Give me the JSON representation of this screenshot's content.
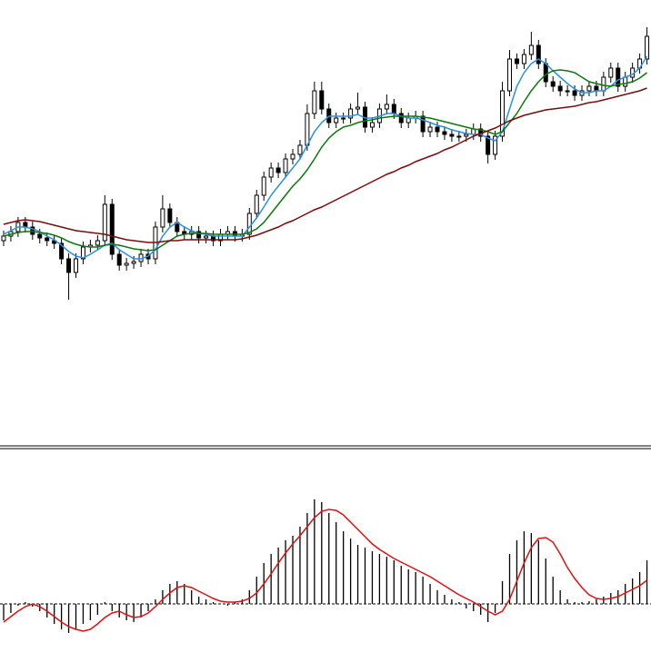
{
  "chart_data": [
    {
      "type": "candlestick",
      "ylim": [
        0,
        490
      ],
      "up_color": "#ffffff",
      "down_color": "#000000",
      "wick_color": "#000000",
      "open": [
        225,
        230,
        235,
        245,
        240,
        232,
        228,
        225,
        222,
        205,
        190,
        205,
        218,
        220,
        225,
        265,
        210,
        198,
        200,
        202,
        210,
        205,
        240,
        260,
        245,
        235,
        232,
        235,
        228,
        230,
        225,
        232,
        235,
        230,
        232,
        255,
        275,
        295,
        305,
        300,
        315,
        320,
        330,
        365,
        390,
        370,
        355,
        360,
        360,
        370,
        372,
        350,
        355,
        370,
        375,
        365,
        355,
        360,
        362,
        345,
        350,
        345,
        342,
        340,
        340,
        342,
        348,
        340,
        320,
        340,
        390,
        425,
        420,
        430,
        440,
        420,
        400,
        395,
        390,
        390,
        385,
        390,
        395,
        390,
        405,
        415,
        395,
        405,
        415,
        425
      ],
      "high": [
        236,
        241,
        251,
        251,
        246,
        238,
        234,
        231,
        228,
        211,
        211,
        224,
        226,
        231,
        275,
        271,
        216,
        206,
        208,
        216,
        216,
        246,
        275,
        266,
        251,
        241,
        241,
        241,
        236,
        236,
        238,
        241,
        241,
        238,
        261,
        281,
        301,
        311,
        311,
        321,
        326,
        336,
        375,
        400,
        400,
        376,
        366,
        366,
        376,
        388,
        378,
        361,
        376,
        386,
        381,
        371,
        366,
        368,
        368,
        356,
        356,
        351,
        348,
        346,
        348,
        354,
        354,
        346,
        346,
        400,
        435,
        431,
        436,
        455,
        446,
        426,
        406,
        401,
        396,
        396,
        396,
        401,
        401,
        411,
        421,
        421,
        411,
        421,
        431,
        460
      ],
      "low": [
        219,
        224,
        229,
        234,
        226,
        222,
        219,
        216,
        199,
        160,
        184,
        199,
        212,
        214,
        219,
        204,
        192,
        192,
        194,
        196,
        199,
        199,
        234,
        239,
        229,
        226,
        226,
        222,
        222,
        219,
        219,
        226,
        224,
        224,
        226,
        249,
        269,
        289,
        294,
        294,
        309,
        314,
        324,
        359,
        364,
        349,
        349,
        354,
        354,
        364,
        344,
        344,
        349,
        364,
        359,
        349,
        349,
        354,
        339,
        339,
        339,
        336,
        334,
        334,
        334,
        336,
        334,
        310,
        314,
        334,
        384,
        414,
        414,
        424,
        414,
        394,
        389,
        384,
        384,
        379,
        379,
        384,
        384,
        384,
        399,
        389,
        389,
        399,
        409,
        419
      ],
      "close": [
        230,
        235,
        245,
        240,
        232,
        228,
        225,
        222,
        205,
        190,
        205,
        218,
        220,
        225,
        265,
        210,
        198,
        200,
        202,
        210,
        205,
        240,
        260,
        245,
        235,
        232,
        235,
        228,
        230,
        225,
        232,
        235,
        230,
        232,
        255,
        275,
        295,
        305,
        300,
        315,
        320,
        330,
        365,
        390,
        370,
        355,
        360,
        360,
        370,
        372,
        350,
        355,
        370,
        375,
        365,
        355,
        360,
        362,
        345,
        350,
        345,
        342,
        340,
        340,
        342,
        348,
        340,
        320,
        340,
        390,
        425,
        420,
        430,
        440,
        420,
        400,
        395,
        390,
        390,
        385,
        390,
        395,
        390,
        405,
        415,
        395,
        405,
        415,
        425,
        450
      ],
      "series": [
        {
          "color": "#2b8fe6",
          "values": [
            232,
            236,
            240,
            240,
            238,
            235,
            230,
            226,
            220,
            213,
            208,
            206,
            210,
            215,
            220,
            222,
            215,
            210,
            205,
            205,
            208,
            215,
            230,
            240,
            245,
            240,
            236,
            233,
            232,
            230,
            230,
            230,
            230,
            230,
            240,
            250,
            262,
            275,
            285,
            295,
            305,
            315,
            330,
            345,
            355,
            362,
            362,
            362,
            362,
            364,
            360,
            360,
            362,
            365,
            365,
            362,
            360,
            360,
            358,
            355,
            352,
            350,
            347,
            345,
            343,
            342,
            342,
            338,
            335,
            345,
            370,
            395,
            410,
            420,
            425,
            420,
            412,
            405,
            398,
            392,
            388,
            388,
            390,
            390,
            395,
            402,
            405,
            408,
            415,
            428
          ]
        },
        {
          "color": "#0a7a0a",
          "values": [
            230,
            232,
            234,
            235,
            235,
            234,
            233,
            231,
            228,
            224,
            221,
            219,
            218,
            218,
            220,
            221,
            220,
            218,
            216,
            215,
            214,
            215,
            220,
            225,
            230,
            232,
            233,
            233,
            233,
            232,
            232,
            232,
            232,
            232,
            234,
            238,
            245,
            255,
            265,
            275,
            285,
            293,
            303,
            315,
            328,
            338,
            345,
            350,
            352,
            355,
            357,
            358,
            360,
            361,
            362,
            362,
            362,
            362,
            361,
            360,
            358,
            356,
            354,
            352,
            350,
            348,
            347,
            345,
            342,
            345,
            355,
            365,
            378,
            390,
            400,
            408,
            412,
            413,
            412,
            410,
            405,
            400,
            398,
            396,
            395,
            397,
            398,
            400,
            404,
            410
          ]
        },
        {
          "color": "#7a0c0c",
          "values": [
            243,
            245,
            247,
            248,
            247,
            246,
            244,
            242,
            240,
            238,
            236,
            235,
            234,
            233,
            232,
            230,
            228,
            226,
            225,
            224,
            223,
            223,
            224,
            225,
            225,
            226,
            226,
            226,
            226,
            226,
            226,
            226,
            226,
            227,
            229,
            231,
            234,
            237,
            240,
            244,
            247,
            251,
            255,
            259,
            262,
            266,
            270,
            274,
            278,
            282,
            286,
            290,
            294,
            298,
            301,
            305,
            308,
            312,
            315,
            318,
            321,
            325,
            328,
            332,
            336,
            340,
            343,
            346,
            349,
            353,
            357,
            360,
            363,
            365,
            367,
            369,
            370,
            371,
            372,
            373,
            375,
            377,
            378,
            380,
            382,
            384,
            386,
            388,
            390,
            393
          ]
        }
      ]
    },
    {
      "type": "bar",
      "ylim": [
        -75,
        170
      ],
      "color": "#000000",
      "values": [
        -18,
        -10,
        -2,
        2,
        -3,
        -8,
        -15,
        -22,
        -28,
        -32,
        -28,
        -22,
        -18,
        -12,
        2,
        -8,
        -15,
        -18,
        -20,
        -15,
        -8,
        5,
        15,
        22,
        25,
        22,
        15,
        8,
        5,
        2,
        0,
        -2,
        2,
        5,
        15,
        30,
        45,
        55,
        62,
        70,
        75,
        85,
        100,
        115,
        112,
        100,
        90,
        80,
        72,
        65,
        62,
        58,
        55,
        52,
        48,
        42,
        38,
        35,
        30,
        22,
        15,
        10,
        5,
        2,
        -5,
        -8,
        -12,
        -20,
        -10,
        25,
        55,
        70,
        80,
        78,
        70,
        50,
        30,
        15,
        5,
        2,
        2,
        3,
        5,
        8,
        12,
        15,
        22,
        28,
        35,
        48
      ],
      "series": [
        {
          "color": "#e01010",
          "values": [
            -20,
            -14,
            -8,
            -3,
            0,
            -3,
            -8,
            -14,
            -20,
            -25,
            -28,
            -30,
            -28,
            -22,
            -15,
            -10,
            -8,
            -12,
            -15,
            -14,
            -10,
            -3,
            5,
            12,
            18,
            20,
            18,
            14,
            10,
            6,
            3,
            2,
            2,
            3,
            6,
            12,
            22,
            33,
            45,
            56,
            66,
            75,
            85,
            95,
            102,
            104,
            103,
            98,
            90,
            82,
            74,
            66,
            60,
            55,
            50,
            46,
            42,
            38,
            34,
            30,
            25,
            20,
            15,
            10,
            6,
            2,
            -3,
            -8,
            -12,
            -8,
            5,
            25,
            45,
            62,
            72,
            73,
            68,
            55,
            40,
            28,
            18,
            10,
            6,
            5,
            6,
            8,
            12,
            16,
            20,
            26
          ]
        }
      ]
    }
  ]
}
